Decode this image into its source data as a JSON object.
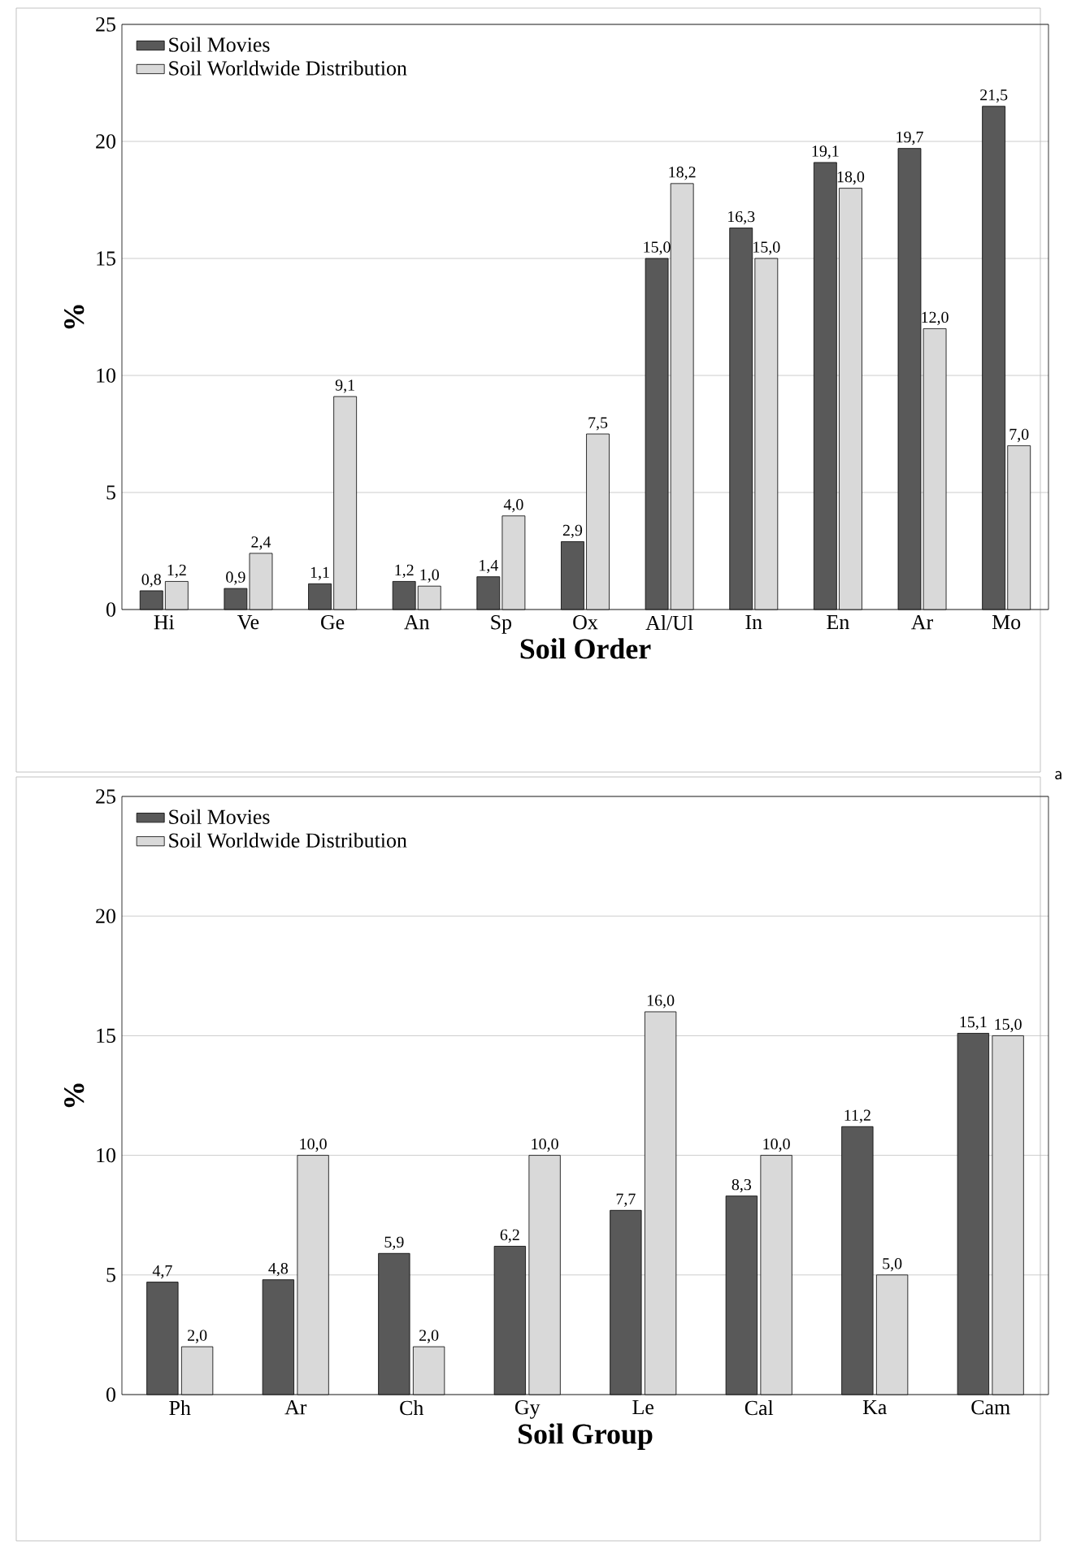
{
  "chart_data": [
    {
      "type": "bar",
      "categories": [
        "Hi",
        "Ve",
        "Ge",
        "An",
        "Sp",
        "Ox",
        "Al/Ul",
        "In",
        "En",
        "Ar",
        "Mo"
      ],
      "xlabel": "Soil Order",
      "ylabel": "%",
      "ylim": [
        0,
        25
      ],
      "yticks": [
        0,
        5,
        10,
        15,
        20,
        25
      ],
      "grid": "y",
      "legend": "top left",
      "annotations": [
        "a"
      ],
      "series": [
        {
          "name": "Soil Movies",
          "color": "#595959",
          "values": [
            0.8,
            0.9,
            1.1,
            1.2,
            1.4,
            2.9,
            15.0,
            16.3,
            19.1,
            19.7,
            21.5
          ],
          "value_labels": [
            "0,8",
            "0,9",
            "1,1",
            "1,2",
            "1,4",
            "2,9",
            "15,0",
            "16,3",
            "19,1",
            "19,7",
            "21,5"
          ]
        },
        {
          "name": "Soil Worldwide Distribution",
          "color": "#d9d9d9",
          "values": [
            1.2,
            2.4,
            9.1,
            1.0,
            4.0,
            7.5,
            18.2,
            15.0,
            18.0,
            12.0,
            7.0
          ],
          "value_labels": [
            "1,2",
            "2,4",
            "9,1",
            "1,0",
            "4,0",
            "7,5",
            "18,2",
            "15,0",
            "18,0",
            "12,0",
            "7,0"
          ]
        }
      ]
    },
    {
      "type": "bar",
      "categories": [
        "Ph",
        "Ar",
        "Ch",
        "Gy",
        "Le",
        "Cal",
        "Ka",
        "Cam"
      ],
      "xlabel": "Soil Group",
      "ylabel": "%",
      "ylim": [
        0,
        25
      ],
      "yticks": [
        0,
        5,
        10,
        15,
        20,
        25
      ],
      "grid": "y",
      "legend": "top left",
      "series": [
        {
          "name": "Soil Movies",
          "color": "#595959",
          "values": [
            4.7,
            4.8,
            5.9,
            6.2,
            7.7,
            8.3,
            11.2,
            15.1
          ],
          "value_labels": [
            "4,7",
            "4,8",
            "5,9",
            "6,2",
            "7,7",
            "8,3",
            "11,2",
            "15,1"
          ]
        },
        {
          "name": "Soil Worldwide Distribution",
          "color": "#d9d9d9",
          "values": [
            2.0,
            10.0,
            2.0,
            10.0,
            16.0,
            10.0,
            5.0,
            15.0
          ],
          "value_labels": [
            "2,0",
            "10,0",
            "2,0",
            "10,0",
            "16,0",
            "10,0",
            "5,0",
            "15,0"
          ]
        }
      ]
    }
  ]
}
